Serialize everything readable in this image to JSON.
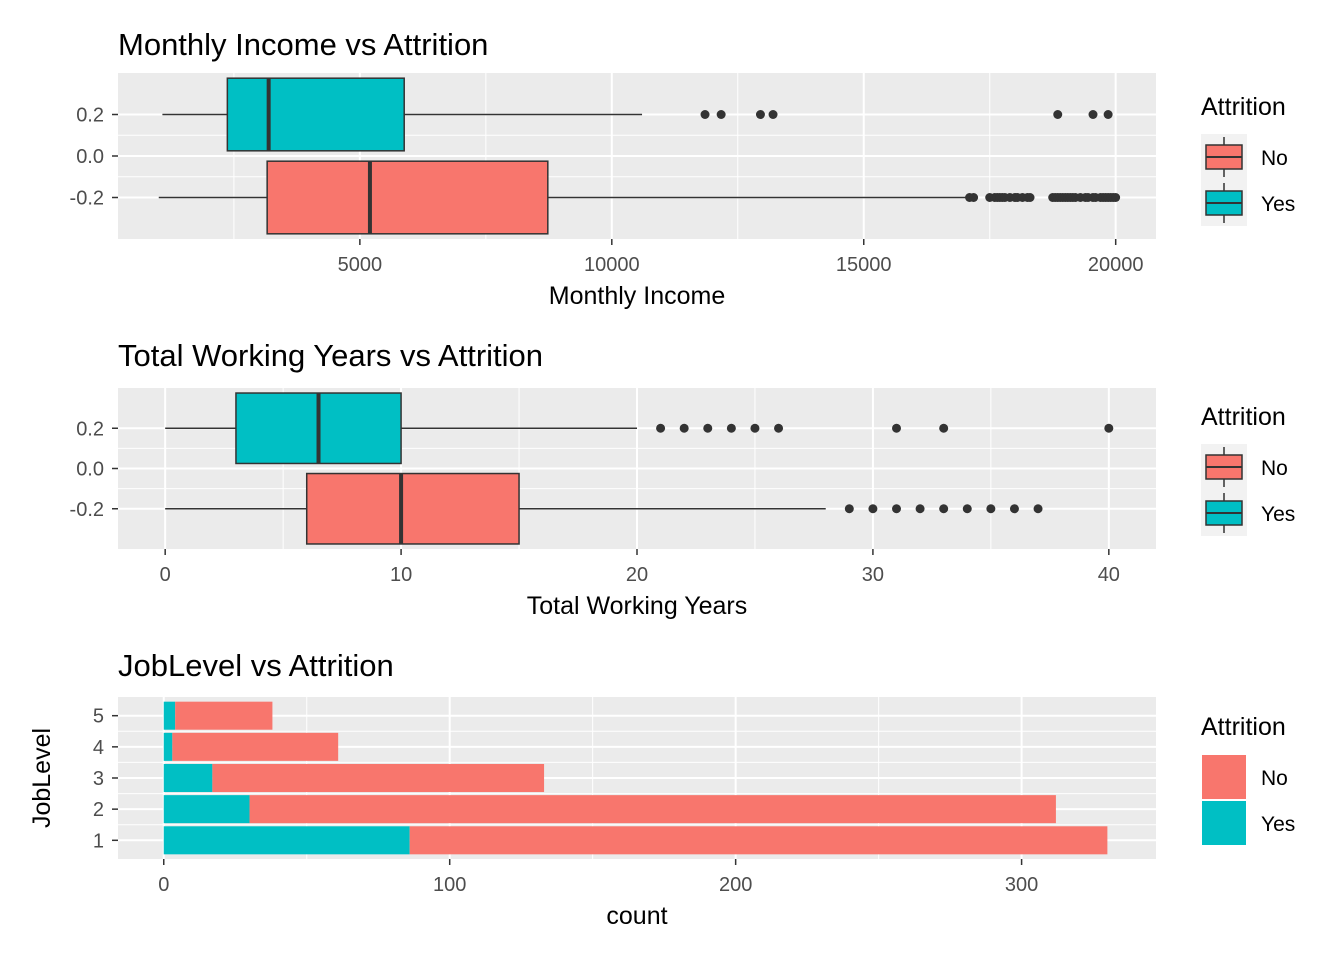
{
  "chart_data": [
    {
      "type": "boxplot",
      "title": "Monthly Income vs Attrition",
      "xlabel": "Monthly Income",
      "ylabel": "",
      "xlim": [
        200,
        20800
      ],
      "ylim": [
        -0.4,
        0.4
      ],
      "x_ticks": [
        5000,
        10000,
        15000,
        20000
      ],
      "x_tick_labels": [
        "5000",
        "10000",
        "15000",
        "20000"
      ],
      "y_ticks": [
        0.2,
        0.0,
        -0.2
      ],
      "y_tick_labels": [
        "0.2",
        "0.0",
        "-0.2"
      ],
      "grid": true,
      "legend": {
        "title": "Attrition",
        "placement": "right"
      },
      "boxes": [
        {
          "name": "No",
          "y": -0.2,
          "color": "#F8766D",
          "whisker_low": 1009,
          "q1": 3160,
          "median": 5200,
          "q3": 8730,
          "whisker_high": 17100,
          "outliers": [
            17100,
            17180,
            17500,
            17600,
            17650,
            17700,
            17750,
            17800,
            17900,
            18000,
            18050,
            18150,
            18250,
            18300,
            18750,
            18800,
            18850,
            18900,
            18950,
            19000,
            19050,
            19100,
            19150,
            19200,
            19300,
            19400,
            19450,
            19550,
            19600,
            19700,
            19750,
            19800,
            19850,
            19900,
            19950,
            19999
          ]
        },
        {
          "name": "Yes",
          "y": 0.2,
          "color": "#00BFC4",
          "whisker_low": 1081,
          "q1": 2370,
          "median": 3190,
          "q3": 5880,
          "whisker_high": 10600,
          "outliers": [
            11850,
            12170,
            12950,
            13200,
            18850,
            19550,
            19850
          ]
        }
      ]
    },
    {
      "type": "boxplot",
      "title": "Total Working Years vs Attrition",
      "xlabel": "Total Working Years",
      "ylabel": "",
      "xlim": [
        -2,
        42
      ],
      "ylim": [
        -0.4,
        0.4
      ],
      "x_ticks": [
        0,
        10,
        20,
        30,
        40
      ],
      "x_tick_labels": [
        "0",
        "10",
        "20",
        "30",
        "40"
      ],
      "y_ticks": [
        0.2,
        0.0,
        -0.2
      ],
      "y_tick_labels": [
        "0.2",
        "0.0",
        "-0.2"
      ],
      "grid": true,
      "legend": {
        "title": "Attrition",
        "placement": "right"
      },
      "boxes": [
        {
          "name": "No",
          "y": -0.2,
          "color": "#F8766D",
          "whisker_low": 0,
          "q1": 6,
          "median": 10,
          "q3": 15,
          "whisker_high": 28,
          "outliers": [
            29,
            30,
            31,
            32,
            33,
            34,
            35,
            36,
            37
          ]
        },
        {
          "name": "Yes",
          "y": 0.2,
          "color": "#00BFC4",
          "whisker_low": 0,
          "q1": 3,
          "median": 6.5,
          "q3": 10,
          "whisker_high": 20,
          "outliers": [
            21,
            22,
            23,
            24,
            25,
            26,
            31,
            33,
            40
          ]
        }
      ]
    },
    {
      "type": "bar",
      "orientation": "horizontal",
      "stacked": true,
      "title": "JobLevel vs Attrition",
      "xlabel": "count",
      "ylabel": "JobLevel",
      "xlim": [
        -16,
        347
      ],
      "x_ticks": [
        0,
        100,
        200,
        300
      ],
      "x_tick_labels": [
        "0",
        "100",
        "200",
        "300"
      ],
      "categories": [
        "1",
        "2",
        "3",
        "4",
        "5"
      ],
      "grid": true,
      "legend": {
        "title": "Attrition",
        "placement": "right"
      },
      "series": [
        {
          "name": "Yes",
          "color": "#00BFC4",
          "values": [
            86,
            30,
            17,
            3,
            4
          ]
        },
        {
          "name": "No",
          "color": "#F8766D",
          "values": [
            244,
            282,
            116,
            58,
            34
          ]
        }
      ]
    }
  ]
}
